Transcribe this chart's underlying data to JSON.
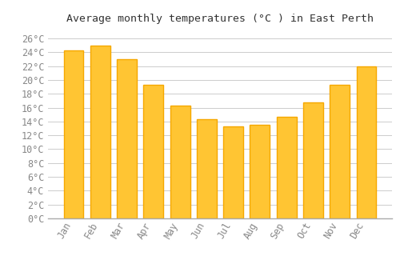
{
  "title": "Average monthly temperatures (°C ) in East Perth",
  "months": [
    "Jan",
    "Feb",
    "Mar",
    "Apr",
    "May",
    "Jun",
    "Jul",
    "Aug",
    "Sep",
    "Oct",
    "Nov",
    "Dec"
  ],
  "values": [
    24.3,
    25.0,
    23.0,
    19.3,
    16.3,
    14.3,
    13.3,
    13.5,
    14.7,
    16.8,
    19.3,
    22.0
  ],
  "bar_color_main": "#FFC533",
  "bar_color_edge": "#F5A800",
  "background_color": "#FFFFFF",
  "grid_color": "#CCCCCC",
  "text_color": "#888888",
  "ylabel_ticks": [
    0,
    2,
    4,
    6,
    8,
    10,
    12,
    14,
    16,
    18,
    20,
    22,
    24,
    26
  ],
  "ylim": [
    0,
    27.5
  ],
  "title_fontsize": 9.5,
  "tick_fontsize": 8.5,
  "font_family": "monospace"
}
